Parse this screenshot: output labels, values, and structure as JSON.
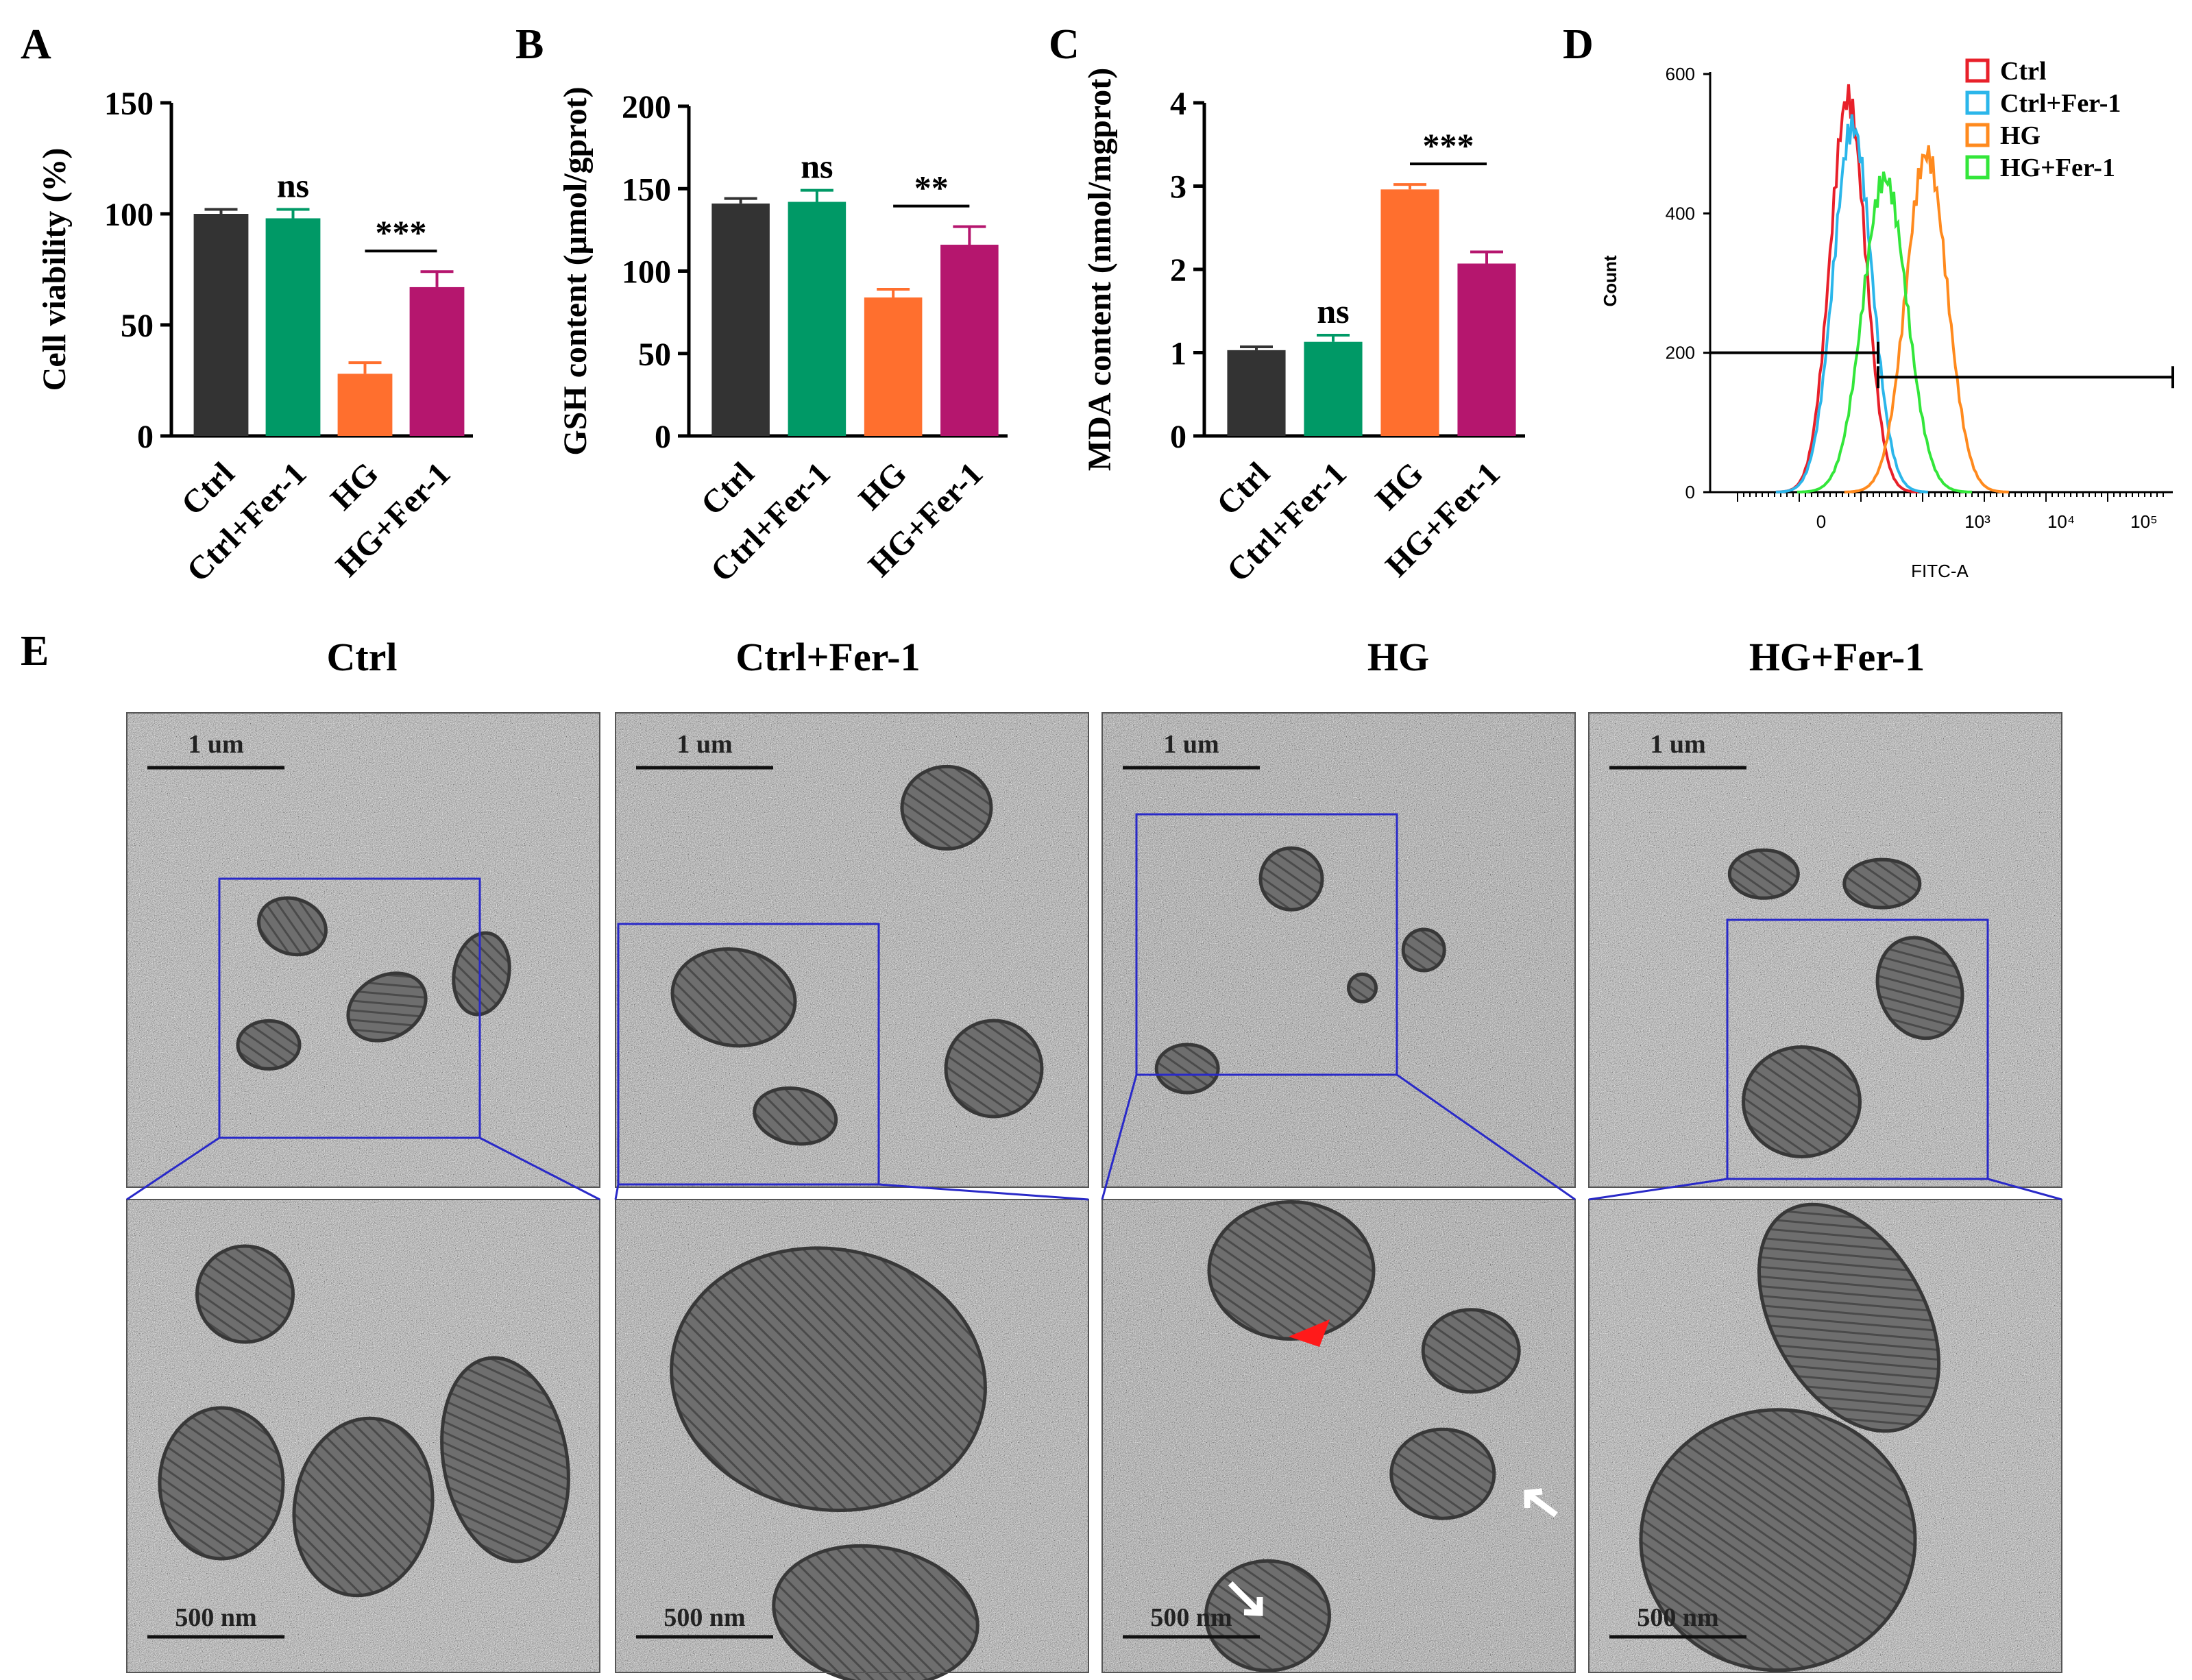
{
  "chart_data": [
    {
      "type": "bar",
      "panel": "A",
      "ylabel": "Cell viability (%)",
      "ylim": [
        0,
        150
      ],
      "yticks": [
        0,
        50,
        100,
        150
      ],
      "categories": [
        "Ctrl",
        "Ctrl+Fer-1",
        "HG",
        "HG+Fer-1"
      ],
      "values": [
        100,
        98,
        28,
        67
      ],
      "errors": [
        2,
        4,
        5,
        7
      ],
      "colors": [
        "#333333",
        "#009966",
        "#ff6f2e",
        "#b5166e"
      ],
      "significance": [
        {
          "label": "ns",
          "over": 1
        },
        {
          "label": "***",
          "from": 2,
          "to": 3
        }
      ]
    },
    {
      "type": "bar",
      "panel": "B",
      "ylabel": "GSH content (μmol/gprot)",
      "ylim": [
        0,
        200
      ],
      "yticks": [
        0,
        50,
        100,
        150,
        200
      ],
      "categories": [
        "Ctrl",
        "Ctrl+Fer-1",
        "HG",
        "HG+Fer-1"
      ],
      "values": [
        141,
        142,
        84,
        116
      ],
      "errors": [
        3,
        7,
        5,
        11
      ],
      "colors": [
        "#333333",
        "#009966",
        "#ff6f2e",
        "#b5166e"
      ],
      "significance": [
        {
          "label": "ns",
          "over": 1
        },
        {
          "label": "**",
          "from": 2,
          "to": 3
        }
      ]
    },
    {
      "type": "bar",
      "panel": "C",
      "ylabel": "MDA content (nmol/mgprot)",
      "ylim": [
        0,
        4
      ],
      "yticks": [
        0,
        1,
        2,
        3,
        4
      ],
      "categories": [
        "Ctrl",
        "Ctrl+Fer-1",
        "HG",
        "HG+Fer-1"
      ],
      "values": [
        1.03,
        1.13,
        2.96,
        2.07
      ],
      "errors": [
        0.04,
        0.08,
        0.06,
        0.14
      ],
      "colors": [
        "#333333",
        "#009966",
        "#ff6f2e",
        "#b5166e"
      ],
      "significance": [
        {
          "label": "ns",
          "over": 1
        },
        {
          "label": "***",
          "from": 2,
          "to": 3
        }
      ]
    },
    {
      "type": "line",
      "panel": "D",
      "ylabel": "Count",
      "xlabel": "FITC-A",
      "ylim": [
        0,
        600
      ],
      "yticks": [
        "0",
        "200",
        "400",
        "600"
      ],
      "xticks": [
        "0",
        "10³",
        "10⁴",
        "10⁵"
      ],
      "legend": "top-right",
      "gate_y": 200,
      "series": [
        {
          "name": "Ctrl",
          "color": "#e8202a",
          "peak": 565,
          "center": 0.12
        },
        {
          "name": "Ctrl+Fer-1",
          "color": "#2bb6ea",
          "peak": 525,
          "center": 0.13
        },
        {
          "name": "HG",
          "color": "#ff8a1e",
          "peak": 485,
          "center": 0.29
        },
        {
          "name": "HG+Fer-1",
          "color": "#33e63a",
          "peak": 450,
          "center": 0.2
        }
      ]
    }
  ],
  "panel_labels": {
    "a": "A",
    "b": "B",
    "c": "C",
    "d": "D",
    "e": "E"
  },
  "tem": {
    "columns": [
      "Ctrl",
      "Ctrl+Fer-1",
      "HG",
      "HG+Fer-1"
    ],
    "top_scale": "1 um",
    "bottom_scale": "500 nm",
    "box_color": "#2929c8",
    "arrow_color": "#ff1a1a"
  }
}
